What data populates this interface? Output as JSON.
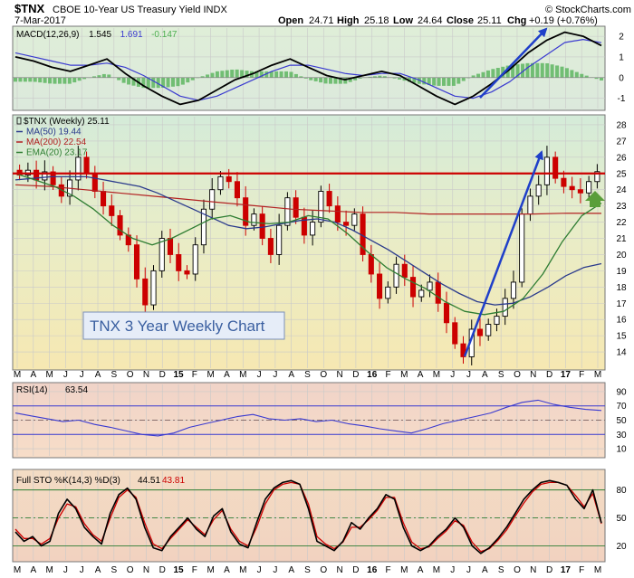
{
  "header": {
    "ticker": "$TNX",
    "name": "CBOE 10-Year US Treasury Yield INDX",
    "date": "7-Mar-2017",
    "open_label": "Open",
    "open": "24.71",
    "high_label": "High",
    "high": "25.18",
    "low_label": "Low",
    "low": "24.64",
    "close_label": "Close",
    "close": "25.11",
    "chg_label": "Chg",
    "chg": "+0.19 (+0.76%)",
    "credit": "© StockCharts.com"
  },
  "annotation": "TNX 3 Year Weekly Chart",
  "colors": {
    "candle_up": "#000000",
    "candle_down": "#cc0000",
    "ma50": "#2a3a8c",
    "ma200": "#b22222",
    "ema20": "#2e7d32",
    "resistance": "#cc0000",
    "trend_arrow": "#1f3fc9",
    "macd": "#000000",
    "signal": "#3a3ad0",
    "histogram": "#4caf50",
    "rsi": "#3a3ad0",
    "sto_k": "#000000",
    "sto_d": "#cc0000",
    "up_arrow": "#5a9e3a"
  },
  "chart_data": [
    {
      "panel": "MACD",
      "type": "line",
      "legend": [
        "MACD(12,26,9)",
        "1.545",
        "1.691",
        "-0.147"
      ],
      "y_ticks": [
        2,
        1,
        0,
        -1
      ],
      "ylim": [
        -1.5,
        2.4
      ],
      "macd": [
        1.0,
        0.8,
        0.5,
        0.3,
        0.6,
        0.9,
        0.2,
        -0.4,
        -0.9,
        -1.3,
        -1.1,
        -0.6,
        -0.1,
        0.2,
        0.6,
        0.9,
        0.5,
        0.1,
        -0.1,
        0.1,
        0.3,
        0.1,
        -0.4,
        -0.9,
        -1.3,
        -0.9,
        -0.3,
        0.4,
        1.2,
        1.8,
        2.2,
        2.0,
        1.55
      ],
      "signal": [
        1.2,
        1.0,
        0.8,
        0.6,
        0.6,
        0.7,
        0.5,
        0.1,
        -0.4,
        -0.9,
        -1.1,
        -0.9,
        -0.5,
        -0.1,
        0.3,
        0.6,
        0.6,
        0.4,
        0.2,
        0.1,
        0.2,
        0.2,
        -0.1,
        -0.5,
        -0.9,
        -1.0,
        -0.7,
        -0.2,
        0.5,
        1.1,
        1.7,
        1.85,
        1.69
      ]
    },
    {
      "panel": "Price",
      "type": "candlestick",
      "legend": [
        {
          "text": "$TNX (Weekly) 25.11",
          "color": "#000000"
        },
        {
          "text": "MA(50) 19.44",
          "color": "#2a3a8c"
        },
        {
          "text": "MA(200) 22.54",
          "color": "#b22222"
        },
        {
          "text": "EMA(20) 23.17",
          "color": "#2e7d32"
        }
      ],
      "y_ticks": [
        14,
        15,
        16,
        17,
        18,
        19,
        20,
        21,
        22,
        23,
        24,
        25,
        26,
        27,
        28
      ],
      "ylim": [
        13,
        28.5
      ],
      "resistance": 25,
      "close": [
        24.9,
        25.2,
        24.6,
        25.1,
        24.3,
        23.6,
        24.6,
        26.0,
        25.0,
        23.9,
        23.0,
        22.4,
        21.2,
        20.6,
        18.5,
        16.9,
        19.0,
        21.0,
        20.0,
        19.0,
        18.8,
        20.6,
        22.8,
        24.0,
        24.8,
        24.5,
        23.5,
        21.8,
        22.5,
        21.0,
        20.0,
        21.8,
        23.5,
        22.3,
        21.2,
        22.0,
        23.9,
        23.0,
        22.0,
        21.8,
        22.5,
        20.0,
        18.8,
        17.3,
        18.0,
        19.4,
        18.6,
        17.4,
        17.8,
        18.3,
        17.0,
        15.8,
        14.5,
        13.7,
        15.4,
        15.0,
        15.7,
        16.2,
        17.3,
        18.3,
        22.5,
        23.6,
        24.3,
        26.0,
        24.7,
        24.2,
        24.0,
        23.8,
        24.5,
        25.11
      ],
      "ma50": [
        24.6,
        24.7,
        24.8,
        24.8,
        24.8,
        24.6,
        24.4,
        24.2,
        23.8,
        23.3,
        22.8,
        22.3,
        21.8,
        21.6,
        21.7,
        21.9,
        22.1,
        22.2,
        22.0,
        21.5,
        20.9,
        20.3,
        19.6,
        18.9,
        18.2,
        17.6,
        17.1,
        16.9,
        17.0,
        17.4,
        18.0,
        18.7,
        19.2,
        19.44
      ],
      "ma200": [
        24.3,
        24.2,
        24.0,
        23.8,
        23.6,
        23.4,
        23.2,
        23.0,
        22.8,
        22.7,
        22.6,
        22.6,
        22.5,
        22.5,
        22.5,
        22.5,
        22.55,
        22.54
      ],
      "ema20": [
        25.0,
        24.6,
        24.2,
        23.6,
        22.8,
        21.8,
        21.0,
        20.6,
        21.0,
        21.6,
        22.2,
        22.4,
        22.0,
        21.9,
        22.0,
        22.4,
        22.2,
        21.3,
        20.2,
        19.2,
        18.5,
        17.9,
        17.1,
        16.5,
        16.3,
        16.5,
        17.3,
        18.8,
        20.8,
        22.4,
        23.17
      ]
    },
    {
      "panel": "RSI",
      "type": "line",
      "legend": [
        "RSI(14)",
        "63.54"
      ],
      "y_ticks": [
        90,
        70,
        50,
        30,
        10
      ],
      "ylim": [
        0,
        100
      ],
      "levels": [
        70,
        30,
        50
      ],
      "values": [
        60,
        56,
        52,
        48,
        50,
        44,
        40,
        35,
        30,
        28,
        32,
        40,
        45,
        50,
        55,
        58,
        52,
        50,
        52,
        48,
        50,
        45,
        42,
        38,
        35,
        32,
        38,
        45,
        50,
        55,
        60,
        68,
        75,
        78,
        72,
        68,
        65,
        63.54
      ]
    },
    {
      "panel": "STO",
      "type": "line",
      "legend": [
        "Full STO %K(14,3) %D(3)",
        "44.51",
        "43.81"
      ],
      "y_ticks": [
        80,
        50,
        20
      ],
      "ylim": [
        5,
        100
      ],
      "levels": [
        80,
        50,
        20
      ],
      "k": [
        35,
        25,
        30,
        20,
        25,
        55,
        70,
        60,
        40,
        30,
        22,
        55,
        75,
        82,
        70,
        40,
        18,
        15,
        30,
        40,
        50,
        38,
        30,
        52,
        60,
        35,
        22,
        18,
        45,
        70,
        82,
        88,
        90,
        86,
        60,
        25,
        20,
        15,
        25,
        45,
        38,
        50,
        60,
        75,
        70,
        40,
        20,
        15,
        20,
        30,
        38,
        50,
        40,
        20,
        12,
        18,
        28,
        40,
        55,
        70,
        80,
        88,
        90,
        88,
        85,
        70,
        60,
        80,
        44.51
      ],
      "d": [
        38,
        28,
        28,
        22,
        28,
        50,
        65,
        62,
        44,
        32,
        25,
        50,
        72,
        80,
        72,
        45,
        22,
        17,
        28,
        38,
        48,
        40,
        32,
        48,
        58,
        38,
        25,
        20,
        40,
        65,
        80,
        86,
        88,
        86,
        65,
        30,
        22,
        17,
        24,
        40,
        40,
        48,
        58,
        72,
        72,
        45,
        24,
        17,
        19,
        28,
        36,
        47,
        42,
        24,
        14,
        17,
        26,
        37,
        52,
        66,
        78,
        86,
        88,
        88,
        85,
        74,
        62,
        76,
        43.81
      ]
    }
  ],
  "x_axis": {
    "labels": [
      "M",
      "A",
      "M",
      "J",
      "J",
      "A",
      "S",
      "O",
      "N",
      "D",
      "15",
      "F",
      "M",
      "A",
      "M",
      "J",
      "J",
      "A",
      "S",
      "O",
      "N",
      "D",
      "16",
      "F",
      "M",
      "A",
      "M",
      "J",
      "J",
      "A",
      "S",
      "O",
      "N",
      "D",
      "17",
      "F",
      "M"
    ],
    "year_labels": [
      "15",
      "16",
      "17"
    ]
  }
}
